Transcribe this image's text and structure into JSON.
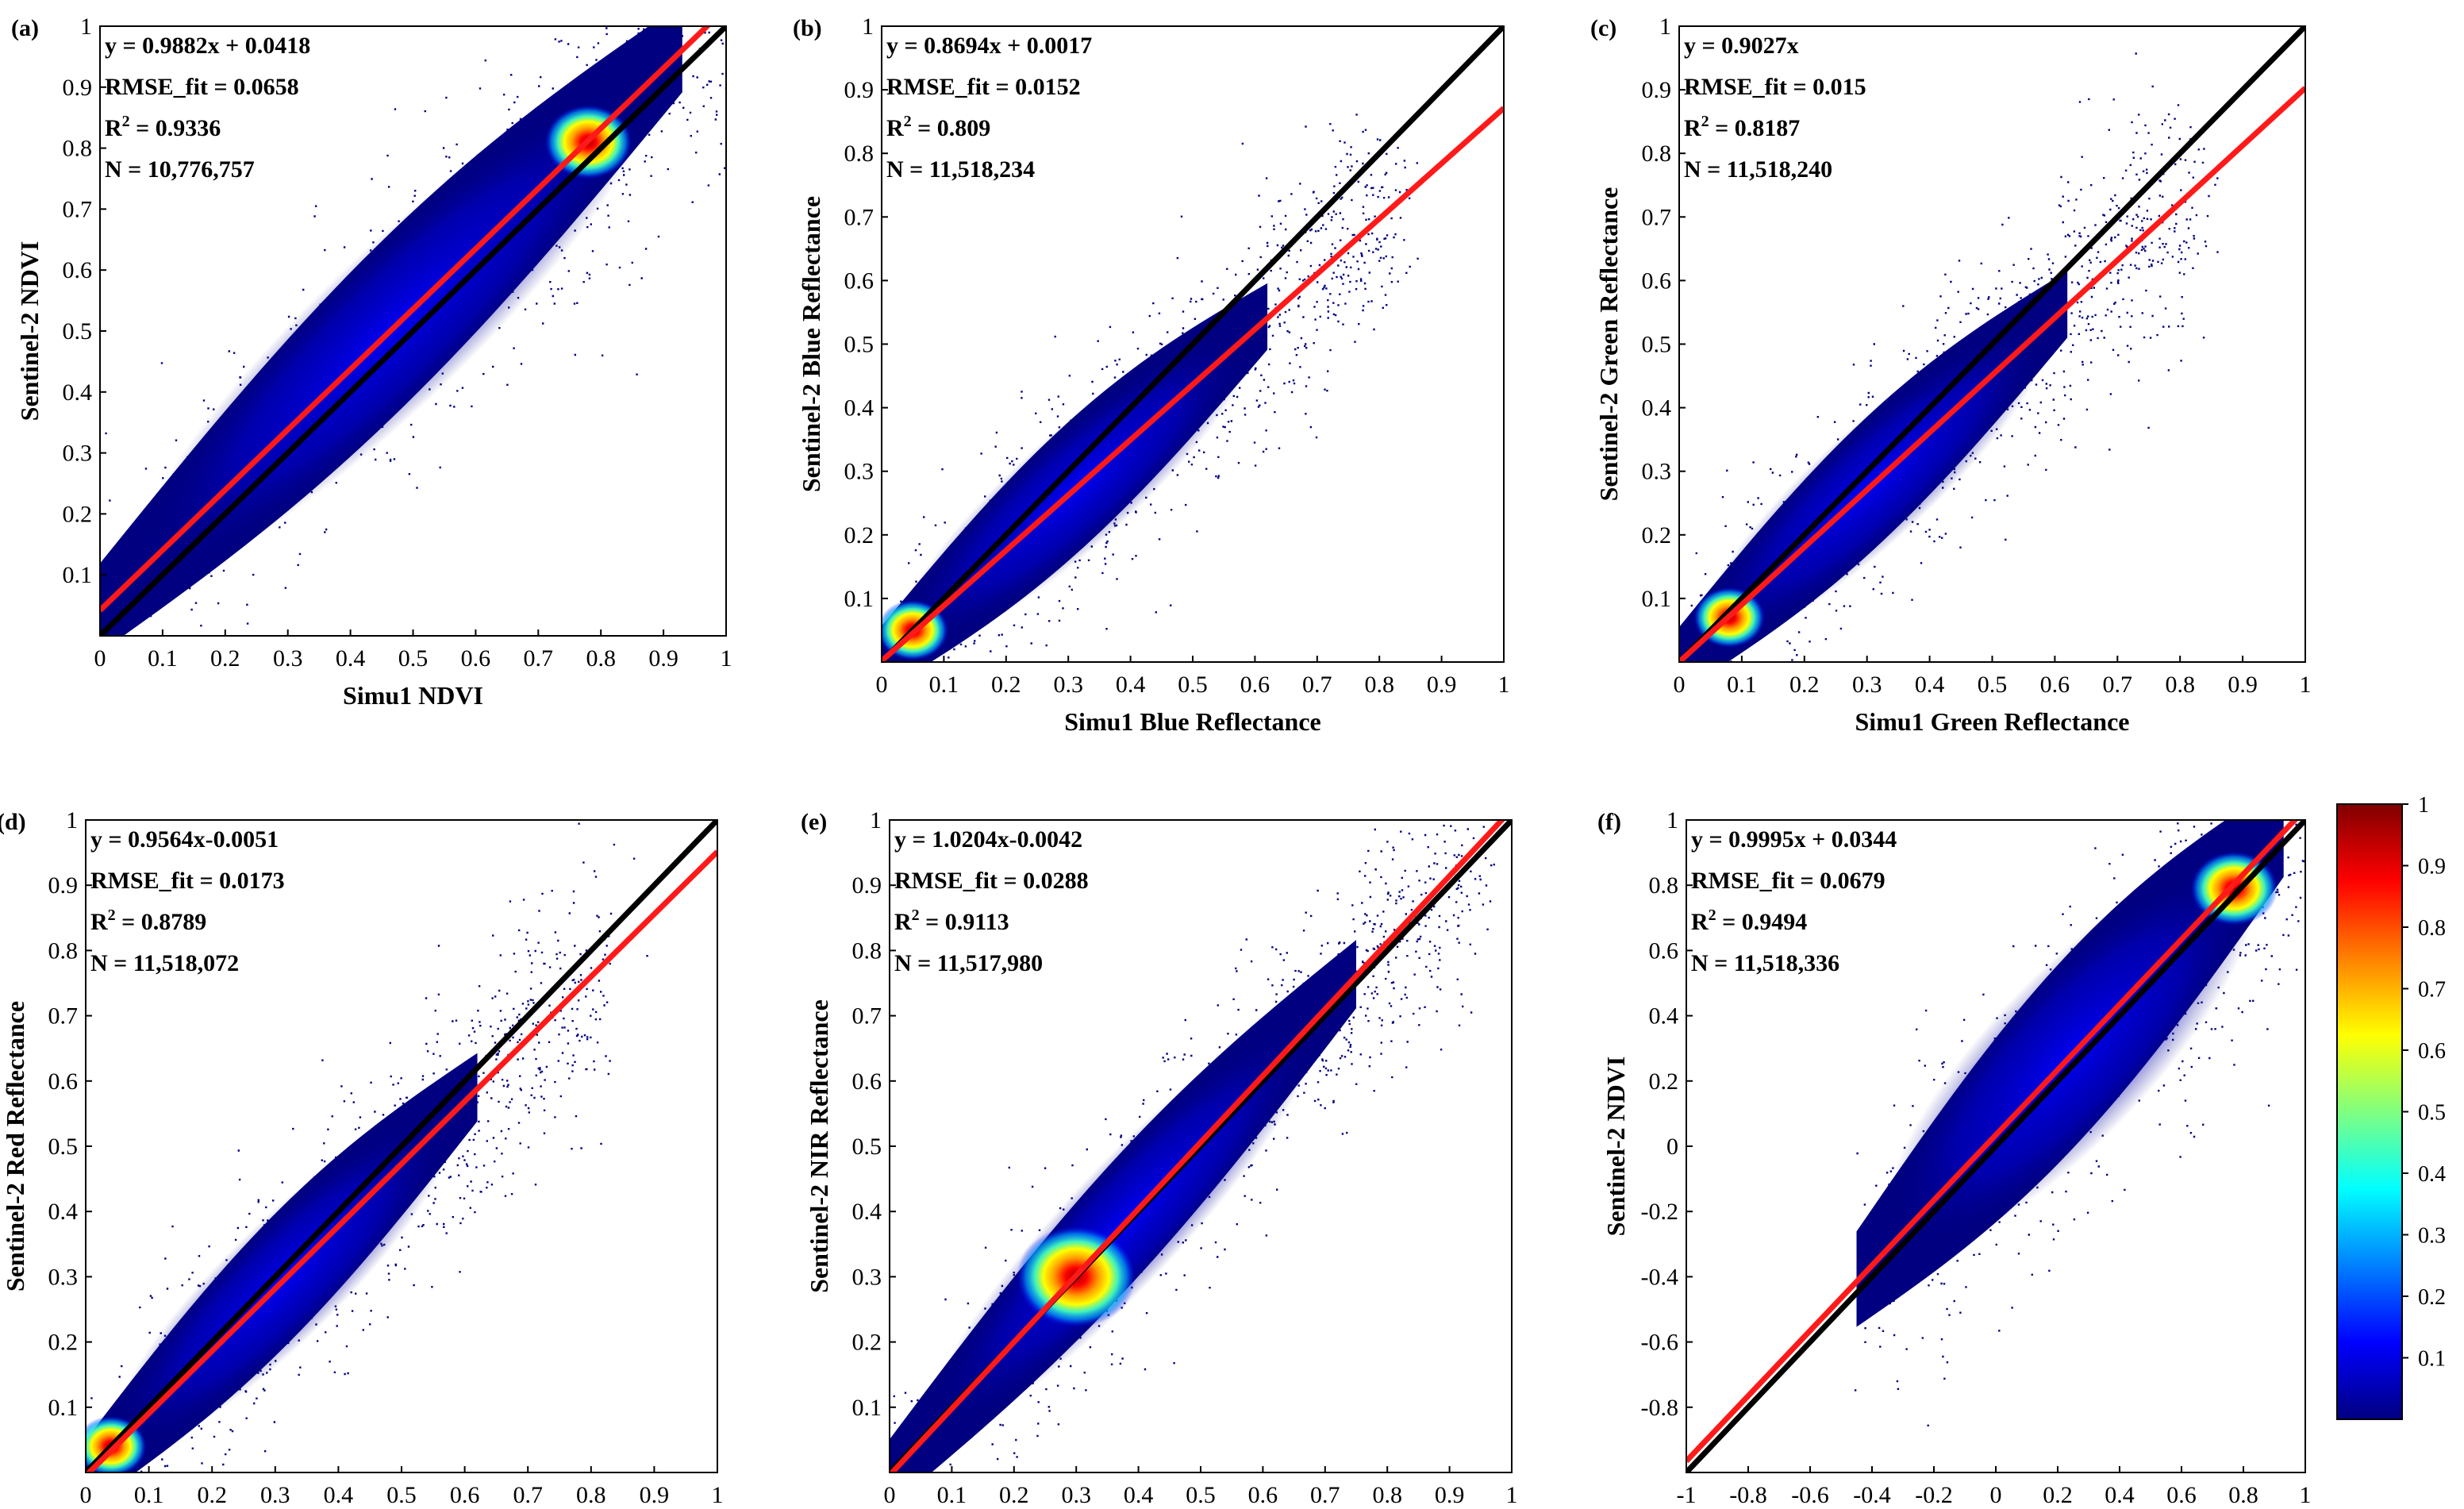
{
  "figure": {
    "colorbar": {
      "ticks": [
        "0.1",
        "0.2",
        "0.3",
        "0.4",
        "0.5",
        "0.6",
        "0.7",
        "0.8",
        "0.9",
        "1"
      ],
      "stops": [
        "#000080",
        "#0000ff",
        "#0080ff",
        "#00ffff",
        "#80ff80",
        "#ffff00",
        "#ff8000",
        "#ff0000",
        "#800000"
      ]
    },
    "colors": {
      "fit_line": "#ff1a1a",
      "identity_line": "#000000",
      "scatter_low": "#000080"
    }
  },
  "chart_data": [
    {
      "type": "scatter",
      "panel_label": "(a)",
      "xlabel": "Simu1 NDVI",
      "ylabel": "Sentinel-2 NDVI",
      "xlim": [
        0,
        1
      ],
      "ylim": [
        0,
        1
      ],
      "xticks": [
        "0",
        "0.1",
        "0.2",
        "0.3",
        "0.4",
        "0.5",
        "0.6",
        "0.7",
        "0.8",
        "0.9",
        "1"
      ],
      "yticks": [
        "0.1",
        "0.2",
        "0.3",
        "0.4",
        "0.5",
        "0.6",
        "0.7",
        "0.8",
        "0.9",
        "1"
      ],
      "stats": [
        {
          "text": "y = 0.9882x + 0.0418"
        },
        {
          "text": "RMSE_fit = 0.0658"
        },
        {
          "pre": "R",
          "sup": "2",
          "post": " = 0.9336"
        },
        {
          "text": "N = 10,776,757"
        }
      ],
      "fit": {
        "slope": 0.9882,
        "intercept": 0.0418
      },
      "identity": true,
      "density_peak": [
        0.78,
        0.81
      ]
    },
    {
      "type": "scatter",
      "panel_label": "(b)",
      "xlabel": "Simu1 Blue Reflectance",
      "ylabel": "Sentinel-2 Blue Reflectance",
      "xlim": [
        0,
        1
      ],
      "ylim": [
        0,
        1
      ],
      "xticks": [
        "0",
        "0.1",
        "0.2",
        "0.3",
        "0.4",
        "0.5",
        "0.6",
        "0.7",
        "0.8",
        "0.9",
        "1"
      ],
      "yticks": [
        "0.1",
        "0.2",
        "0.3",
        "0.4",
        "0.5",
        "0.6",
        "0.7",
        "0.8",
        "0.9",
        "1"
      ],
      "stats": [
        {
          "text": "y = 0.8694x + 0.0017"
        },
        {
          "text": "RMSE_fit = 0.0152"
        },
        {
          "pre": "R",
          "sup": "2",
          "post": " = 0.809"
        },
        {
          "text": "N = 11,518,234"
        }
      ],
      "fit": {
        "slope": 0.8694,
        "intercept": 0.0017
      },
      "identity": true,
      "density_peak": [
        0.05,
        0.05
      ]
    },
    {
      "type": "scatter",
      "panel_label": "(c)",
      "xlabel": "Simu1 Green  Reflectance",
      "ylabel": "Sentinel-2 Green Reflectance",
      "xlim": [
        0,
        1
      ],
      "ylim": [
        0,
        1
      ],
      "xticks": [
        "0",
        "0.1",
        "0.2",
        "0.3",
        "0.4",
        "0.5",
        "0.6",
        "0.7",
        "0.8",
        "0.9",
        "1"
      ],
      "yticks": [
        "0.1",
        "0.2",
        "0.3",
        "0.4",
        "0.5",
        "0.6",
        "0.7",
        "0.8",
        "0.9",
        "1"
      ],
      "stats": [
        {
          "text": "y = 0.9027x"
        },
        {
          "text": "RMSE_fit = 0.015"
        },
        {
          "pre": "R",
          "sup": "2",
          "post": " = 0.8187"
        },
        {
          "text": "N = 11,518,240"
        }
      ],
      "fit": {
        "slope": 0.9027,
        "intercept": 0
      },
      "identity": true,
      "density_peak": [
        0.08,
        0.07
      ]
    },
    {
      "type": "scatter",
      "panel_label": "(d)",
      "xlabel": "Simu1 Red Reflectance",
      "ylabel": "Sentinel-2 Red Reflectance",
      "xlim": [
        0,
        1
      ],
      "ylim": [
        0,
        1
      ],
      "xticks": [
        "0",
        "0.1",
        "0.2",
        "0.3",
        "0.4",
        "0.5",
        "0.6",
        "0.7",
        "0.8",
        "0.9",
        "1"
      ],
      "yticks": [
        "0.1",
        "0.2",
        "0.3",
        "0.4",
        "0.5",
        "0.6",
        "0.7",
        "0.8",
        "0.9",
        "1"
      ],
      "stats": [
        {
          "text": "y = 0.9564x-0.0051"
        },
        {
          "text": "RMSE_fit = 0.0173"
        },
        {
          "pre": "R",
          "sup": "2",
          "post": " = 0.8789"
        },
        {
          "text": "N = 11,518,072"
        }
      ],
      "fit": {
        "slope": 0.9564,
        "intercept": -0.0051
      },
      "identity": true,
      "density_peak": [
        0.04,
        0.04
      ]
    },
    {
      "type": "scatter",
      "panel_label": "(e)",
      "xlabel": "Simu1 NIR Reflectance",
      "ylabel": "Sentinel-2 NIR Reflectance",
      "xlim": [
        0,
        1
      ],
      "ylim": [
        0,
        1
      ],
      "xticks": [
        "0",
        "0.1",
        "0.2",
        "0.3",
        "0.4",
        "0.5",
        "0.6",
        "0.7",
        "0.8",
        "0.9",
        "1"
      ],
      "yticks": [
        "0.1",
        "0.2",
        "0.3",
        "0.4",
        "0.5",
        "0.6",
        "0.7",
        "0.8",
        "0.9",
        "1"
      ],
      "stats": [
        {
          "text": "y = 1.0204x-0.0042"
        },
        {
          "text": "RMSE_fit = 0.0288"
        },
        {
          "pre": "R",
          "sup": "2",
          "post": " = 0.9113"
        },
        {
          "text": "N = 11,517,980"
        }
      ],
      "fit": {
        "slope": 1.0204,
        "intercept": -0.0042
      },
      "identity": true,
      "density_peak": [
        0.3,
        0.3
      ]
    },
    {
      "type": "scatter",
      "panel_label": "(f)",
      "xlabel": "Simu1 NDVI",
      "ylabel": "Sentinel-2 NDVI",
      "xlim": [
        -1,
        1
      ],
      "ylim": [
        -1,
        1
      ],
      "xticks": [
        "-1",
        "-0.8",
        "-0.6",
        "-0.4",
        "-0.2",
        "0",
        "0.2",
        "0.4",
        "0.6",
        "0.8",
        "1"
      ],
      "yticks": [
        "-0.8",
        "-0.6",
        "-0.4",
        "-0.2",
        "0",
        "0.2",
        "0.4",
        "0.6",
        "0.8",
        "1"
      ],
      "stats": [
        {
          "text": "y = 0.9995x + 0.0344"
        },
        {
          "text": "RMSE_fit = 0.0679"
        },
        {
          "pre": "R",
          "sup": "2",
          "post": " = 0.9494"
        },
        {
          "text": "N = 11,518,336"
        }
      ],
      "fit": {
        "slope": 0.9995,
        "intercept": 0.0344
      },
      "identity": true,
      "density_peak": [
        0.77,
        0.79
      ]
    }
  ]
}
